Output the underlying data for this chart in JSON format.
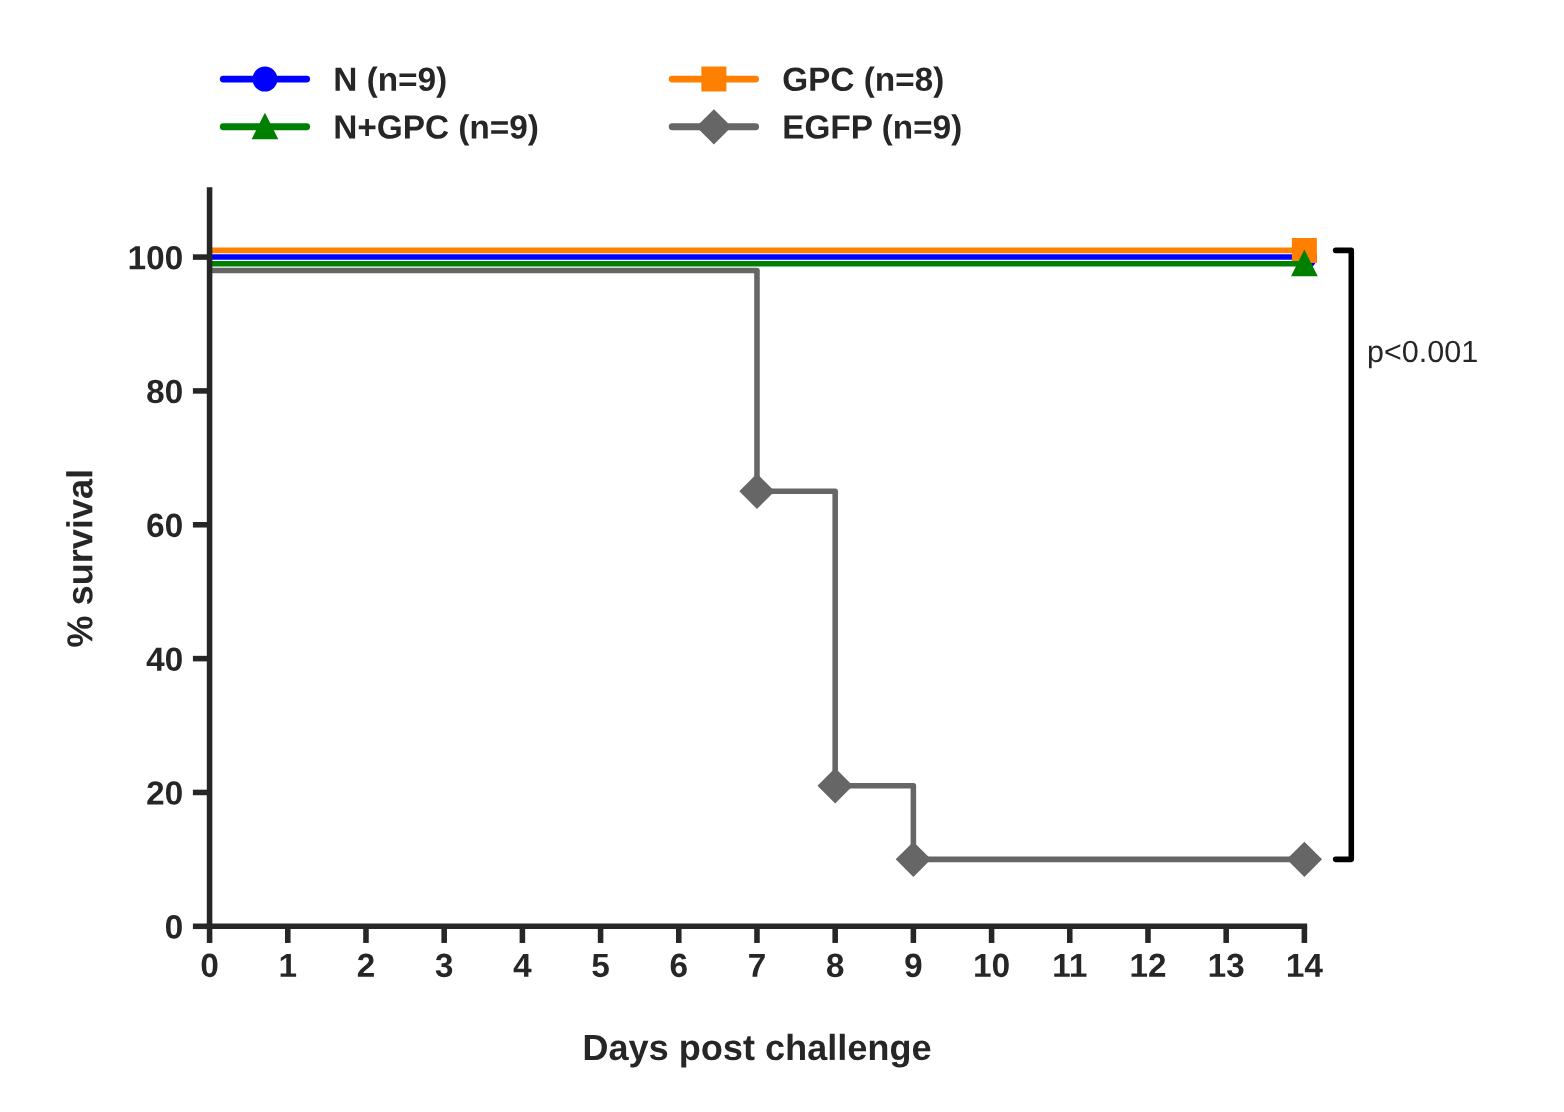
{
  "chart_data": {
    "type": "step",
    "xlabel": "Days post challenge",
    "ylabel": "% survival",
    "series": [
      {
        "name": "N (n=9)",
        "color": "#0000ff",
        "marker": "circle",
        "x": [
          0,
          14
        ],
        "values": [
          100,
          100
        ]
      },
      {
        "name": "GPC (n=8)",
        "color": "#ff8000",
        "marker": "square",
        "x": [
          0,
          14
        ],
        "values": [
          101,
          101
        ]
      },
      {
        "name": "N+GPC (n=9)",
        "color": "#008000",
        "marker": "triangle",
        "x": [
          0,
          14
        ],
        "values": [
          99,
          99
        ]
      },
      {
        "name": "EGFP (n=9)",
        "color": "#666666",
        "marker": "diamond",
        "x": [
          0,
          7,
          8,
          9,
          14
        ],
        "values": [
          98,
          65,
          21,
          10,
          10
        ]
      }
    ],
    "xlim": [
      0,
      14
    ],
    "ylim": [
      0,
      110
    ],
    "xticks": [
      0,
      1,
      2,
      3,
      4,
      5,
      6,
      7,
      8,
      9,
      10,
      11,
      12,
      13,
      14
    ],
    "yticks": [
      0,
      20,
      40,
      60,
      80,
      100
    ],
    "grid": false,
    "legend": "top",
    "annotations": [
      "p<0.001"
    ]
  }
}
